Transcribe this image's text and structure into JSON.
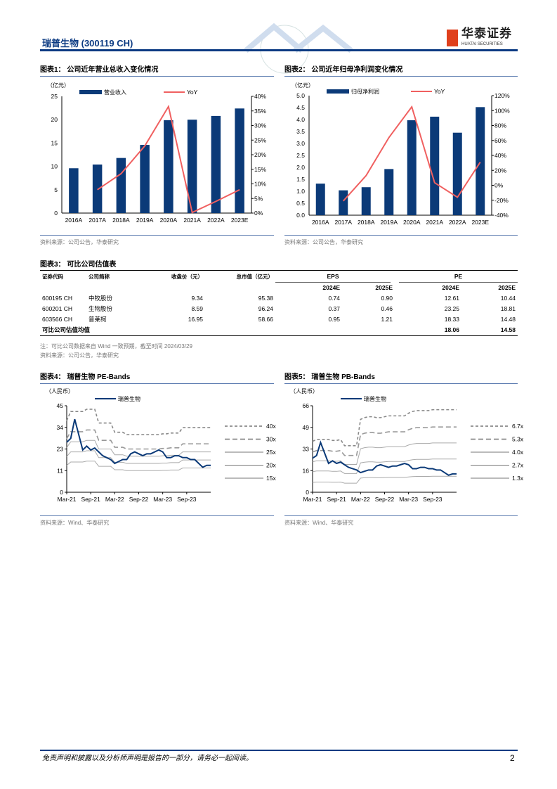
{
  "header": {
    "title": "瑞普生物 (300119 CH)",
    "logo_cn": "华泰证券",
    "logo_en": "HUATAI SECURITIES"
  },
  "fig1": {
    "title": "图表1：  公司近年营业总收入变化情况",
    "source": "资料来源：公司公告，华泰研究",
    "chart_data": {
      "type": "bar",
      "unit": "（亿元）",
      "categories": [
        "2016A",
        "2017A",
        "2018A",
        "2019A",
        "2020A",
        "2021A",
        "2022A",
        "2023E"
      ],
      "series": [
        {
          "name": "营业收入",
          "values": [
            9.6,
            10.4,
            11.8,
            14.6,
            19.9,
            20.0,
            20.8,
            22.4
          ],
          "axis": "left"
        },
        {
          "name": "YoY",
          "values": [
            null,
            8.0,
            13.5,
            23.0,
            36.5,
            0.2,
            4.0,
            8.0
          ],
          "axis": "right",
          "type": "line"
        }
      ],
      "ylim": [
        0,
        25
      ],
      "yticks": [
        0,
        5,
        10,
        15,
        20,
        25
      ],
      "y2lim": [
        0,
        40
      ],
      "y2ticks": [
        "0%",
        "5%",
        "10%",
        "15%",
        "20%",
        "25%",
        "30%",
        "35%",
        "40%"
      ],
      "colors": {
        "bar": "#0b3a78",
        "line": "#f06060"
      }
    }
  },
  "fig2": {
    "title": "图表2：  公司近年归母净利润变化情况",
    "source": "资料来源：公司公告，华泰研究",
    "chart_data": {
      "type": "bar",
      "unit": "（亿元）",
      "categories": [
        "2016A",
        "2017A",
        "2018A",
        "2019A",
        "2020A",
        "2021A",
        "2022A",
        "2023E"
      ],
      "series": [
        {
          "name": "归母净利润",
          "values": [
            1.32,
            1.04,
            1.17,
            1.93,
            3.97,
            4.12,
            3.45,
            4.52
          ],
          "axis": "left"
        },
        {
          "name": "YoY",
          "values": [
            null,
            -21,
            13,
            64,
            105,
            3.5,
            -16,
            31
          ],
          "axis": "right",
          "type": "line"
        }
      ],
      "ylim": [
        0,
        5
      ],
      "yticks": [
        "0.0",
        "0.5",
        "1.0",
        "1.5",
        "2.0",
        "2.5",
        "3.0",
        "3.5",
        "4.0",
        "4.5",
        "5.0"
      ],
      "y2lim": [
        -40,
        120
      ],
      "y2ticks": [
        "-40%",
        "-20%",
        "0%",
        "20%",
        "40%",
        "60%",
        "80%",
        "100%",
        "120%"
      ],
      "colors": {
        "bar": "#0b3a78",
        "line": "#f06060"
      }
    }
  },
  "fig3": {
    "title": "图表3：  可比公司估值表",
    "headers": {
      "code": "证券代码",
      "name": "公司简称",
      "price": "收盘价（元）",
      "mcap": "总市值（亿元）",
      "eps": "EPS",
      "pe": "PE",
      "y1": "2024E",
      "y2": "2025E"
    },
    "rows": [
      {
        "code": "600195 CH",
        "name": "中牧股份",
        "price": "9.34",
        "mcap": "95.38",
        "eps1": "0.74",
        "eps2": "0.90",
        "pe1": "12.61",
        "pe2": "10.44"
      },
      {
        "code": "600201 CH",
        "name": "生物股份",
        "price": "8.59",
        "mcap": "96.24",
        "eps1": "0.37",
        "eps2": "0.46",
        "pe1": "23.25",
        "pe2": "18.81"
      },
      {
        "code": "603566 CH",
        "name": "普莱柯",
        "price": "16.95",
        "mcap": "58.66",
        "eps1": "0.95",
        "eps2": "1.21",
        "pe1": "18.33",
        "pe2": "14.48"
      }
    ],
    "avg": {
      "label": "可比公司估值均值",
      "pe1": "18.06",
      "pe2": "14.58"
    },
    "note": "注：可比公司数据来自 Wind 一致预期，截至时间 2024/03/29",
    "source": "资料来源：公司公告，华泰研究"
  },
  "fig4": {
    "title": "图表4：  瑞普生物 PE-Bands",
    "source": "资料来源：Wind、华泰研究",
    "chart_data": {
      "type": "line",
      "unit": "（人民币）",
      "series_name": "瑞普生物",
      "ylim": [
        0,
        45
      ],
      "yticks": [
        "0",
        "11",
        "23",
        "34",
        "45"
      ],
      "xticks": [
        "Mar-21",
        "Sep-21",
        "Mar-22",
        "Sep-22",
        "Mar-23",
        "Sep-23"
      ],
      "price": [
        26,
        28,
        38,
        30,
        22,
        24,
        22,
        23,
        21,
        19,
        18,
        17,
        15,
        16,
        17,
        17,
        20,
        21,
        20,
        19,
        20,
        20,
        21,
        22,
        21,
        18,
        18,
        19,
        19,
        18,
        18,
        17,
        17,
        15,
        13,
        14,
        14
      ],
      "band_base": [
        0.93,
        1.05,
        1.05,
        1.05,
        1.05,
        1.08,
        1.08,
        1.08,
        0.9,
        0.9,
        0.9,
        0.9,
        0.78,
        0.78,
        0.78,
        0.75,
        0.75,
        0.75,
        0.75,
        0.75,
        0.75,
        0.75,
        0.75,
        0.75,
        0.76,
        0.76,
        0.77,
        0.77,
        0.77,
        0.84,
        0.84,
        0.84,
        0.84,
        0.84,
        0.84,
        0.84,
        0.84
      ],
      "bands": [
        {
          "label": "40x",
          "mult": 40,
          "style": "dash-small"
        },
        {
          "label": "30x",
          "mult": 30,
          "style": "dash-large"
        },
        {
          "label": "25x",
          "mult": 25,
          "style": "solid"
        },
        {
          "label": "20x",
          "mult": 20,
          "style": "solid"
        },
        {
          "label": "15x",
          "mult": 15,
          "style": "solid"
        }
      ]
    }
  },
  "fig5": {
    "title": "图表5：  瑞普生物 PB-Bands",
    "source": "资料来源：Wind、华泰研究",
    "chart_data": {
      "type": "line",
      "unit": "（人民币）",
      "series_name": "瑞普生物",
      "ylim": [
        0,
        66
      ],
      "yticks": [
        "0",
        "16",
        "33",
        "49",
        "66"
      ],
      "xticks": [
        "Mar-21",
        "Sep-21",
        "Mar-22",
        "Sep-22",
        "Mar-23",
        "Sep-23"
      ],
      "price": [
        26,
        28,
        38,
        30,
        22,
        24,
        22,
        23,
        21,
        19,
        18,
        17,
        15,
        16,
        17,
        17,
        20,
        21,
        20,
        19,
        20,
        20,
        21,
        22,
        21,
        18,
        18,
        19,
        19,
        18,
        18,
        17,
        17,
        15,
        13,
        14,
        14
      ],
      "band_base": [
        5.8,
        6.0,
        6.0,
        6.0,
        6.0,
        5.9,
        5.9,
        6.0,
        5.3,
        5.3,
        5.3,
        5.3,
        8.3,
        8.5,
        8.6,
        8.6,
        8.5,
        8.5,
        8.6,
        8.7,
        8.7,
        8.7,
        8.7,
        8.7,
        9.0,
        9.2,
        9.3,
        9.3,
        9.3,
        9.3,
        9.4,
        9.4,
        9.4,
        9.4,
        9.4,
        9.4,
        9.4
      ],
      "bands": [
        {
          "label": "6.7x",
          "mult": 6.7,
          "style": "dash-small"
        },
        {
          "label": "5.3x",
          "mult": 5.3,
          "style": "dash-large"
        },
        {
          "label": "4.0x",
          "mult": 4.0,
          "style": "solid"
        },
        {
          "label": "2.7x",
          "mult": 2.7,
          "style": "solid"
        },
        {
          "label": "1.3x",
          "mult": 1.3,
          "style": "solid"
        }
      ]
    }
  },
  "footer": {
    "disclaimer": "免责声明和披露以及分析师声明是报告的一部分，请务必一起阅读。",
    "page": "2"
  }
}
